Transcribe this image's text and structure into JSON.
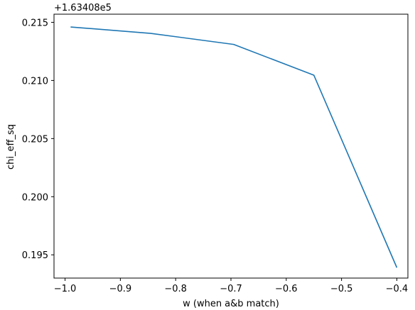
{
  "chart_data": {
    "type": "line",
    "title": "",
    "xlabel": "w (when a&b match)",
    "ylabel": "chi_eff_sq",
    "offset_label": "+1.63408e5",
    "xlim": [
      -1.02,
      -0.38
    ],
    "ylim": [
      0.193,
      0.2157
    ],
    "x_ticks": [
      -1.0,
      -0.9,
      -0.8,
      -0.7,
      -0.6,
      -0.5,
      -0.4
    ],
    "x_tick_labels": [
      "−1.0",
      "−0.9",
      "−0.8",
      "−0.7",
      "−0.6",
      "−0.5",
      "−0.4"
    ],
    "y_ticks": [
      0.195,
      0.2,
      0.205,
      0.21,
      0.215
    ],
    "y_tick_labels": [
      "0.195",
      "0.200",
      "0.205",
      "0.210",
      "0.215"
    ],
    "grid": false,
    "series": [
      {
        "color": "#1f77b4",
        "x": [
          -0.99,
          -0.845,
          -0.695,
          -0.55,
          -0.4
        ],
        "y": [
          0.2146,
          0.21405,
          0.2131,
          0.21045,
          0.1939
        ]
      }
    ]
  }
}
